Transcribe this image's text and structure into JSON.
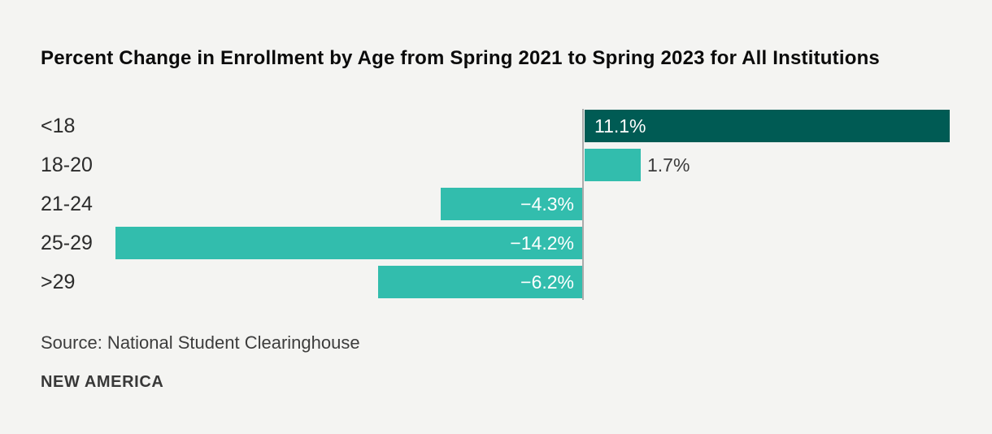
{
  "chart_data": {
    "type": "bar",
    "orientation": "horizontal",
    "title": "Percent Change in Enrollment by Age from Spring 2021 to Spring 2023 for All Institutions",
    "categories": [
      "<18",
      "18-20",
      "21-24",
      "25-29",
      ">29"
    ],
    "values": [
      11.1,
      1.7,
      -4.3,
      -14.2,
      -6.2
    ],
    "labels": [
      "11.1%",
      "1.7%",
      "−4.3%",
      "−14.2%",
      "−6.2%"
    ],
    "xlim": [
      -14.2,
      11.1
    ],
    "grid": false,
    "legend": false,
    "ylabel": "",
    "xlabel": "",
    "bar_colors": [
      "#005b54",
      "#32bdad",
      "#32bdad",
      "#32bdad",
      "#32bdad"
    ],
    "value_label_styles": [
      "inside-left-white",
      "outside-right-dark",
      "inside-right-white",
      "inside-right-white",
      "inside-right-white"
    ],
    "axis_line_color": "#ababab",
    "background_color": "#f4f4f2"
  },
  "footer": {
    "source": "Source: National Student Clearinghouse",
    "brand": "NEW AMERICA"
  }
}
